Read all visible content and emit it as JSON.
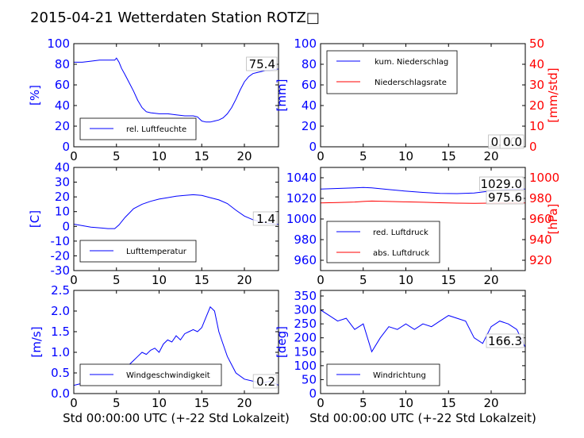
{
  "title": "2015-04-21 Wetterdaten Station ROTZ□",
  "xlabel": "Std 00:00:00 UTC (+-22 Std Lokalzeit)",
  "colors": {
    "primary": "#0000ff",
    "secondary": "#ff0000",
    "wind_light": "#7777ff"
  },
  "chart_data": [
    {
      "type": "line",
      "xlim": [
        0,
        24
      ],
      "xticks": [
        0,
        5,
        10,
        15,
        20
      ],
      "ylim": [
        0,
        100
      ],
      "yticks": [
        0,
        20,
        40,
        60,
        80,
        100
      ],
      "ylabel": "[%]",
      "legend_position": "lower-left",
      "annotation": "75.4",
      "series": [
        {
          "name": "rel. Luftfeuchte",
          "x": [
            0,
            1,
            2,
            3,
            4,
            4.8,
            5,
            5.3,
            5.6,
            6,
            6.5,
            7,
            7.5,
            8,
            8.5,
            9,
            10,
            11,
            12,
            13,
            14,
            14.5,
            15,
            15.5,
            16,
            16.5,
            17,
            17.5,
            18,
            18.5,
            19,
            19.5,
            20,
            20.5,
            21,
            21.5,
            22,
            22.5,
            23,
            23.5,
            24
          ],
          "y": [
            82,
            82,
            83,
            84,
            84,
            84,
            86,
            82,
            76,
            70,
            62,
            54,
            45,
            38,
            34,
            33,
            32,
            32,
            31,
            30,
            30,
            29,
            25,
            24,
            24,
            25,
            26,
            28,
            32,
            38,
            46,
            55,
            63,
            68,
            71,
            72,
            73,
            74,
            74,
            75,
            75.4
          ]
        }
      ]
    },
    {
      "type": "line",
      "xlim": [
        0,
        24
      ],
      "xticks": [
        0,
        5,
        10,
        15,
        20
      ],
      "ylim": [
        0,
        100
      ],
      "yticks": [
        0,
        20,
        40,
        60,
        80,
        100
      ],
      "y2lim": [
        0,
        50
      ],
      "y2ticks": [
        0,
        10,
        20,
        30,
        40,
        50
      ],
      "ylabel": "[mm]",
      "y2label": "[mm/std]",
      "legend_position": "upper-left",
      "annotation": "0.00",
      "annotation2": "0.0",
      "series": [
        {
          "name": "kum. Niederschlag",
          "axis": "left",
          "x": [
            0,
            24
          ],
          "y": [
            0,
            0
          ]
        },
        {
          "name": "Niederschlagsrate",
          "axis": "right",
          "x": [
            0,
            24
          ],
          "y": [
            0,
            0
          ]
        }
      ]
    },
    {
      "type": "line",
      "xlim": [
        0,
        24
      ],
      "xticks": [
        0,
        5,
        10,
        15,
        20
      ],
      "ylim": [
        -30,
        40
      ],
      "yticks": [
        -30,
        -20,
        -10,
        0,
        10,
        20,
        30,
        40
      ],
      "ylabel": "[C]",
      "legend_position": "lower-left",
      "annotation": "1.4",
      "series": [
        {
          "name": "Lufttemperatur",
          "x": [
            0,
            1,
            2,
            3,
            4,
            4.8,
            5.3,
            6,
            6.5,
            7,
            8,
            9,
            10,
            11,
            12,
            13,
            14,
            15,
            16,
            17,
            18,
            19,
            20,
            21,
            22,
            23,
            24
          ],
          "y": [
            1.5,
            0.5,
            -0.5,
            -1,
            -1.5,
            -1.5,
            1,
            6,
            9,
            12,
            15,
            17,
            18.5,
            19.5,
            20.5,
            21,
            21.5,
            21,
            19.5,
            18,
            15.5,
            11,
            7,
            4.5,
            3,
            2,
            1.4
          ]
        }
      ]
    },
    {
      "type": "line",
      "xlim": [
        0,
        24
      ],
      "xticks": [
        0,
        5,
        10,
        15,
        20
      ],
      "ylim": [
        950,
        1050
      ],
      "yticks": [
        960,
        980,
        1000,
        1020,
        1040
      ],
      "y2lim": [
        910,
        1010
      ],
      "y2ticks": [
        920,
        940,
        960,
        980,
        1000
      ],
      "y2label": "[hPa]",
      "legend_position": "lower-left",
      "annotation": "1029.0",
      "annotation2": "975.6",
      "series": [
        {
          "name": "red. Luftdruck",
          "axis": "left",
          "x": [
            0,
            2,
            4,
            5,
            6,
            8,
            10,
            12,
            14,
            16,
            18,
            20,
            22,
            24
          ],
          "y": [
            1029,
            1029.6,
            1030.2,
            1030.5,
            1030.2,
            1028.5,
            1027,
            1025.8,
            1024.8,
            1024.6,
            1025.2,
            1027.2,
            1028.6,
            1029
          ]
        },
        {
          "name": "abs. Luftdruck",
          "axis": "right",
          "x": [
            0,
            2,
            4,
            5,
            6,
            8,
            10,
            12,
            14,
            16,
            18,
            20,
            22,
            24
          ],
          "y": [
            975.5,
            976,
            976.5,
            977,
            977.4,
            977,
            976.6,
            976.2,
            975.8,
            975.4,
            975.2,
            975.4,
            975.6,
            975.6
          ]
        }
      ]
    },
    {
      "type": "line",
      "xlim": [
        0,
        24
      ],
      "xticks": [
        0,
        5,
        10,
        15,
        20
      ],
      "ylim": [
        0,
        2.5
      ],
      "yticks": [
        0.0,
        0.5,
        1.0,
        1.5,
        2.0,
        2.5
      ],
      "ylabel": "[m/s]",
      "legend_position": "lower-left",
      "annotation": "0.2",
      "series": [
        {
          "name": "Windgeschwindigkeit",
          "x": [
            0,
            1,
            2,
            3,
            4,
            5,
            6,
            6.5,
            7,
            7.5,
            8,
            8.5,
            9,
            9.5,
            10,
            10.5,
            11,
            11.5,
            12,
            12.5,
            13,
            13.5,
            14,
            14.5,
            15,
            15.5,
            16,
            16.5,
            17,
            17.5,
            18,
            18.5,
            19,
            20,
            21,
            22,
            23,
            24
          ],
          "y": [
            0.2,
            0.25,
            0.3,
            0.3,
            0.3,
            0.35,
            0.45,
            0.7,
            0.8,
            0.9,
            1.0,
            0.95,
            1.05,
            1.1,
            1.0,
            1.2,
            1.3,
            1.25,
            1.4,
            1.3,
            1.45,
            1.5,
            1.55,
            1.5,
            1.6,
            1.85,
            2.1,
            2.0,
            1.5,
            1.2,
            0.9,
            0.7,
            0.5,
            0.35,
            0.3,
            0.25,
            0.3,
            0.2
          ]
        }
      ]
    },
    {
      "type": "line",
      "xlim": [
        0,
        24
      ],
      "xticks": [
        0,
        5,
        10,
        15,
        20
      ],
      "ylim": [
        0,
        370
      ],
      "yticks": [
        0,
        50,
        100,
        150,
        200,
        250,
        300,
        350
      ],
      "ylabel": "[deg]",
      "legend_position": "lower-left",
      "annotation": "166.3",
      "series": [
        {
          "name": "Windrichtung",
          "x": [
            0,
            1,
            2,
            3,
            4,
            5,
            6,
            7,
            8,
            9,
            10,
            11,
            12,
            13,
            14,
            15,
            16,
            17,
            18,
            19,
            20,
            21,
            22,
            23,
            24
          ],
          "y": [
            300,
            280,
            260,
            270,
            230,
            250,
            150,
            200,
            240,
            230,
            250,
            230,
            250,
            240,
            260,
            280,
            270,
            260,
            200,
            180,
            240,
            260,
            250,
            230,
            166.3
          ]
        }
      ]
    }
  ]
}
